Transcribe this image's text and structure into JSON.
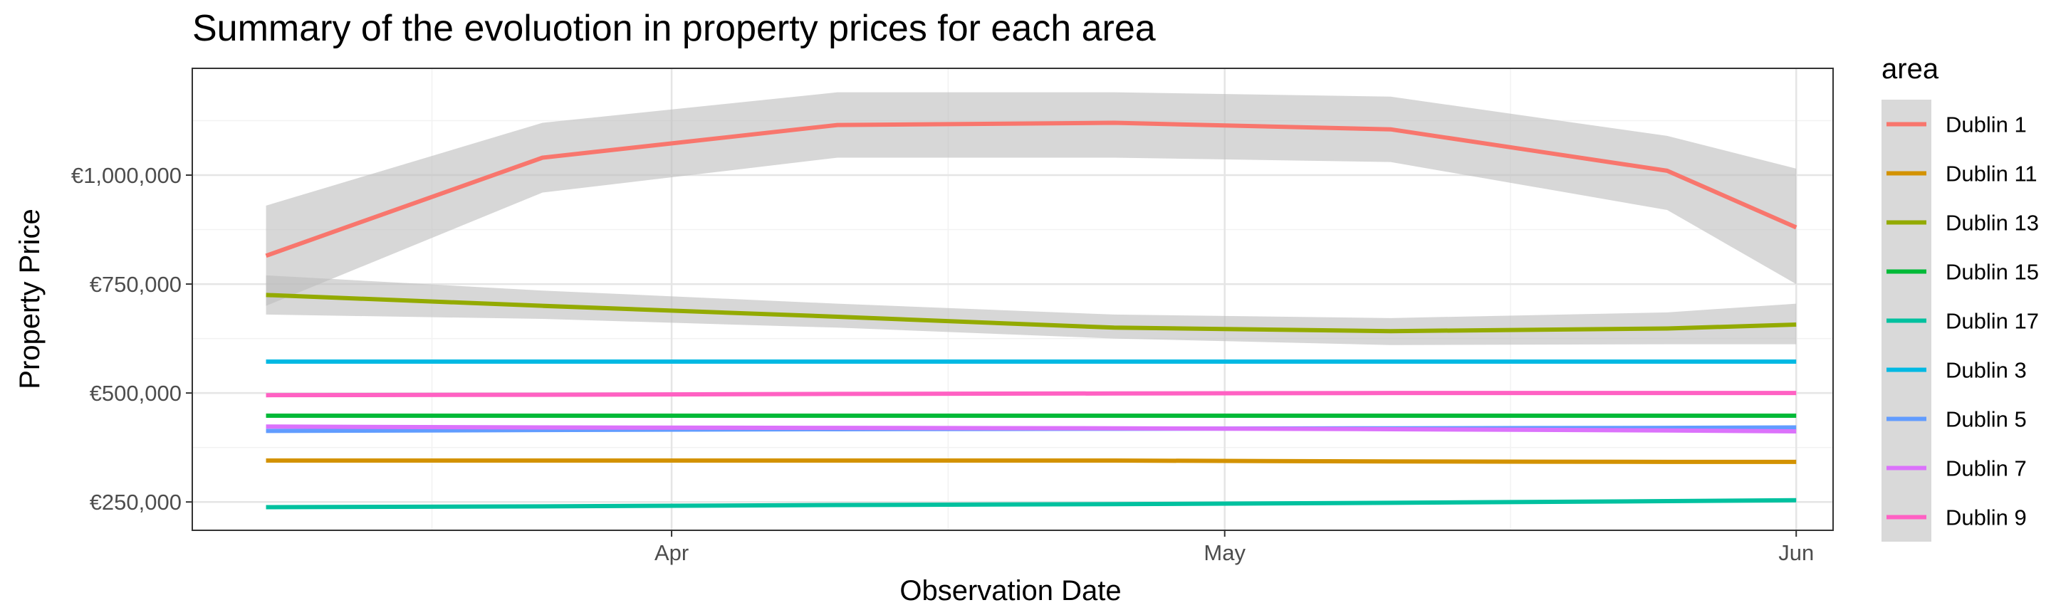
{
  "chart_data": {
    "type": "line",
    "title": "Summary of the evoluotion in property prices for each area",
    "xlabel": "Observation Date",
    "ylabel": "Property Price",
    "x_ticks": [
      {
        "label": "Apr",
        "date": "2019-04-01"
      },
      {
        "label": "May",
        "date": "2019-05-01"
      },
      {
        "label": "Jun",
        "date": "2019-06-01"
      }
    ],
    "y_ticks": [
      {
        "label": "€250,000",
        "value": 250000
      },
      {
        "label": "€500,000",
        "value": 500000
      },
      {
        "label": "€750,000",
        "value": 750000
      },
      {
        "label": "€1,000,000",
        "value": 1000000
      }
    ],
    "xlim": [
      "2019-03-06",
      "2019-06-03"
    ],
    "ylim": [
      185000,
      1245000
    ],
    "x": [
      "2019-03-10",
      "2019-03-25",
      "2019-04-10",
      "2019-04-25",
      "2019-05-10",
      "2019-05-25",
      "2019-06-01"
    ],
    "grid": true,
    "legend_position": "right",
    "legend_title": "area",
    "series": [
      {
        "name": "Dublin 1",
        "color": "#F8766D",
        "values": [
          815000,
          1040000,
          1115000,
          1120000,
          1105000,
          1010000,
          880000
        ],
        "band_lower": [
          700000,
          960000,
          1040000,
          1040000,
          1030000,
          920000,
          750000
        ],
        "band_upper": [
          930000,
          1120000,
          1190000,
          1190000,
          1180000,
          1090000,
          1015000
        ]
      },
      {
        "name": "Dublin 11",
        "color": "#D39200",
        "values": [
          345000,
          345000,
          345000,
          345000,
          343000,
          342000,
          342000
        ]
      },
      {
        "name": "Dublin 13",
        "color": "#93AA00",
        "values": [
          725000,
          700000,
          675000,
          650000,
          642000,
          648000,
          657000
        ],
        "band_lower": [
          680000,
          670000,
          650000,
          625000,
          610000,
          612000,
          612000
        ],
        "band_upper": [
          770000,
          735000,
          705000,
          680000,
          672000,
          685000,
          705000
        ]
      },
      {
        "name": "Dublin 15",
        "color": "#00BA38",
        "values": [
          448000,
          448000,
          448000,
          448000,
          448000,
          448000,
          448000
        ]
      },
      {
        "name": "Dublin 17",
        "color": "#00C19F",
        "values": [
          238000,
          240000,
          243000,
          245000,
          248000,
          252000,
          254000
        ]
      },
      {
        "name": "Dublin 3",
        "color": "#00B9E3",
        "values": [
          572000,
          572000,
          572000,
          572000,
          572000,
          572000,
          572000
        ]
      },
      {
        "name": "Dublin 5",
        "color": "#619CFF",
        "values": [
          413000,
          415000,
          417000,
          418000,
          419000,
          420000,
          421000
        ]
      },
      {
        "name": "Dublin 7",
        "color": "#DB72FB",
        "values": [
          423000,
          421000,
          420000,
          419000,
          417000,
          414000,
          412000
        ]
      },
      {
        "name": "Dublin 9",
        "color": "#FF61C3",
        "values": [
          495000,
          496000,
          498000,
          499000,
          500000,
          500000,
          500000
        ]
      }
    ],
    "band_color": "#bdbdbd"
  }
}
